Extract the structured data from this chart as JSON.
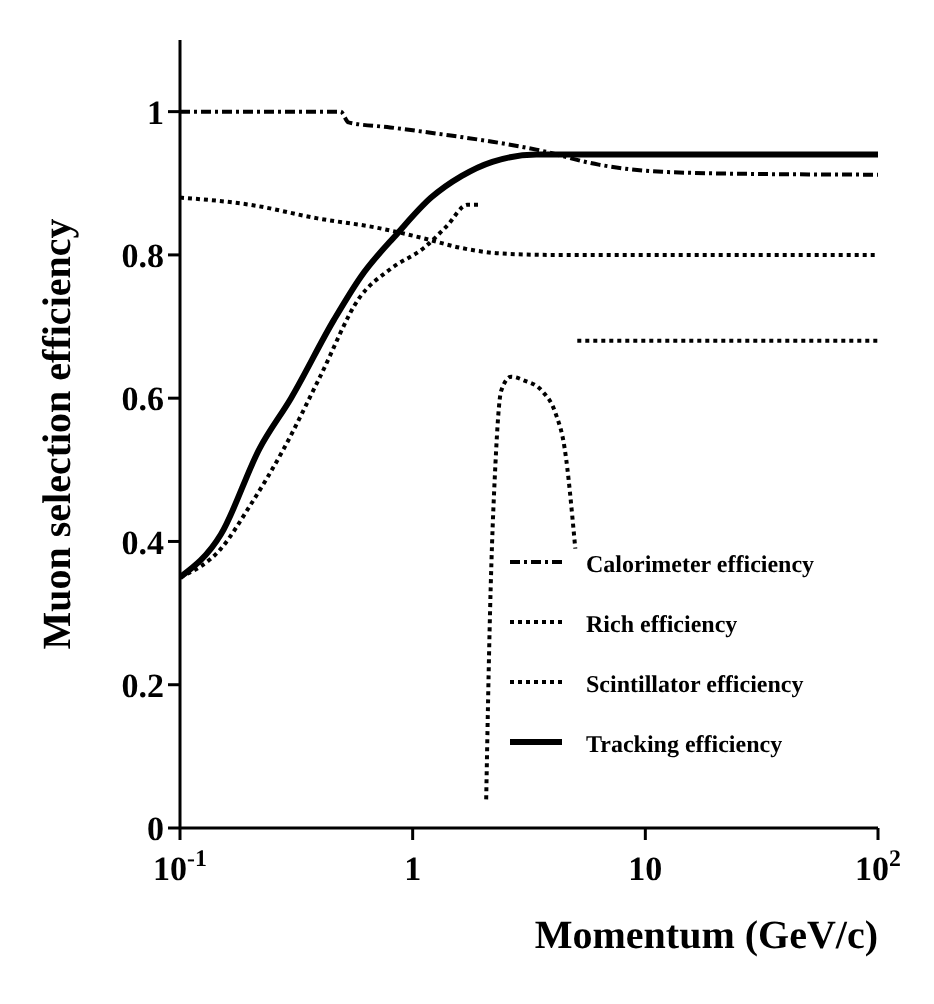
{
  "chart_data": {
    "type": "line",
    "xlabel": "Momentum (GeV/c)",
    "ylabel": "Muon selection efficiency",
    "log": "x",
    "xlim": [
      0.1,
      100
    ],
    "xticks": [
      {
        "value": 0.1,
        "label": "10$^{-1}$"
      },
      1,
      10,
      {
        "value": 100,
        "label": "10$^{2}$"
      }
    ],
    "ylim": [
      0,
      1.1
    ],
    "yticks": [
      0,
      0.2,
      0.4,
      0.6,
      0.8,
      1
    ],
    "legend": "bottom right",
    "series": [
      {
        "name": "Calorimeter efficiency",
        "color": "#000000",
        "line_style": "dashed",
        "x": [
          0.1,
          0.49,
          0.53,
          0.8,
          1.43,
          2.2,
          3.4,
          6.3,
          11.8,
          30,
          100
        ],
        "values": [
          1.0,
          1.0,
          0.985,
          0.978,
          0.967,
          0.958,
          0.947,
          0.926,
          0.916,
          0.913,
          0.912
        ]
      },
      {
        "name": "Rich efficiency",
        "color": "#000000",
        "line_style": "dotted",
        "x": [
          0.1,
          0.15,
          0.2,
          0.28,
          0.4,
          0.59,
          0.8,
          1.12,
          1.4,
          1.72,
          1.95,
          2.0,
          2.07,
          2.15,
          2.27,
          2.4,
          2.65,
          3.0,
          3.6,
          4.1,
          4.5,
          5.0,
          5.05,
          5.1,
          100
        ],
        "values": [
          0.35,
          0.39,
          0.45,
          0.53,
          0.63,
          0.74,
          0.78,
          0.81,
          0.84,
          0.87,
          0.87,
          null,
          0.04,
          0.3,
          0.51,
          0.61,
          0.63,
          0.625,
          0.61,
          0.58,
          0.53,
          0.39,
          null,
          0.68,
          0.68
        ]
      },
      {
        "name": "Scintillator efficiency",
        "color": "#000000",
        "line_style": "dotted",
        "x": [
          0.1,
          0.2,
          0.39,
          0.7,
          1.12,
          1.6,
          2.4,
          4,
          10,
          100
        ],
        "values": [
          0.88,
          0.87,
          0.851,
          0.838,
          0.823,
          0.81,
          0.802,
          0.8,
          0.8,
          0.8
        ]
      },
      {
        "name": "Tracking efficiency",
        "color": "#000000",
        "line_style": "solid",
        "x": [
          0.1,
          0.15,
          0.22,
          0.3,
          0.46,
          0.6,
          0.86,
          1.2,
          1.62,
          2.2,
          3.4,
          100
        ],
        "values": [
          0.35,
          0.41,
          0.53,
          0.6,
          0.71,
          0.77,
          0.83,
          0.88,
          0.91,
          0.93,
          0.94,
          0.94
        ]
      }
    ]
  }
}
